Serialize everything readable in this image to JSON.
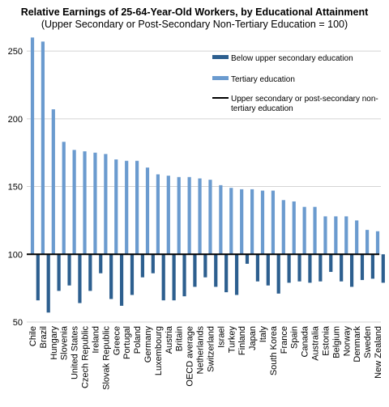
{
  "chart_data": {
    "type": "bar",
    "title": "Relative Earnings of 25-64-Year-Old Workers, by Educational Attainment",
    "subtitle": "(Upper Secondary or Post-Secondary Non-Tertiary Education = 100)",
    "xlabel": "",
    "ylabel": "",
    "baseline": 100,
    "ylim": [
      50,
      262
    ],
    "yticks": [
      50,
      100,
      150,
      200,
      250
    ],
    "grid": true,
    "legend_position": "top-right",
    "categories": [
      "Chile",
      "Brazil",
      "Hungary",
      "Slovenia",
      "United States",
      "Czech Republic",
      "Ireland",
      "Slovak Republic",
      "Greece",
      "Portugal",
      "Poland",
      "Germany",
      "Luxembourg",
      "Austria",
      "Britain",
      "OECD average",
      "Netherlands",
      "Switzerland",
      "Israel",
      "Turkey",
      "Finland",
      "Japan",
      "Italy",
      "South Korea",
      "France",
      "Spain",
      "Canada",
      "Australia",
      "Estonia",
      "Belgium",
      "Norway",
      "Denmark",
      "Sweden",
      "New Zealand"
    ],
    "series": [
      {
        "name": "Below upper secondary education",
        "color": "#2d5f8f",
        "values": [
          66,
          57,
          73,
          77,
          64,
          73,
          86,
          67,
          62,
          70,
          83,
          86,
          66,
          66,
          69,
          76,
          83,
          76,
          72,
          70,
          93,
          80,
          77,
          71,
          79,
          80,
          79,
          80,
          87,
          80,
          76,
          81,
          82,
          79
        ]
      },
      {
        "name": "Tertiary education",
        "color": "#6b9bcf",
        "values": [
          260,
          257,
          207,
          183,
          177,
          176,
          175,
          174,
          170,
          169,
          169,
          164,
          159,
          158,
          157,
          157,
          156,
          155,
          151,
          149,
          148,
          148,
          147,
          147,
          140,
          139,
          135,
          135,
          128,
          128,
          128,
          125,
          118,
          117
        ]
      }
    ],
    "reference_line": {
      "name": "Upper secondary or post-secondary non-tertiary education",
      "color": "#000000",
      "value": 100
    }
  },
  "legend": {
    "item1": "Below upper secondary education",
    "item2": "Tertiary education",
    "item3_line1": "Upper secondary or post-secondary non-",
    "item3_line2": "tertiary education"
  }
}
